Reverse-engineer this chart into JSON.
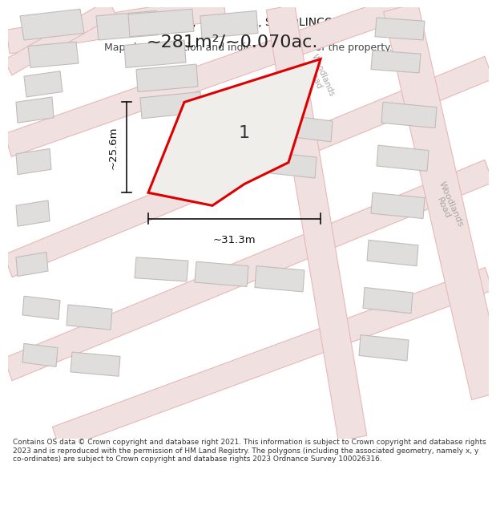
{
  "title_line1": "1, ALICE GARDENS, OVERSEAL, SWADLINCOTE, DE12 6LB",
  "title_line2": "Map shows position and indicative extent of the property.",
  "area_text": "~281m²/~0.070ac.",
  "label_1": "1",
  "dim_width": "~31.3m",
  "dim_height": "~25.6m",
  "road_label_upper": "Woodlands Road",
  "road_label_lower": "Woodlands Road",
  "footer": "Contains OS data © Crown copyright and database right 2021. This information is subject to Crown copyright and database rights 2023 and is reproduced with the permission of HM Land Registry. The polygons (including the associated geometry, namely x, y co-ordinates) are subject to Crown copyright and database rights 2023 Ordnance Survey 100026316.",
  "map_bg": "#f7f5f2",
  "road_line_color": "#e8b8b8",
  "road_fill_color": "#f0e0e0",
  "building_fill": "#e0dedd",
  "building_edge": "#c0bcba",
  "plot_fill": "#f0eeeb",
  "plot_edge": "#dd0000",
  "dim_color": "#111111",
  "text_color": "#222222",
  "road_text_color": "#aaa8a5",
  "footer_color": "#333333",
  "title_color": "#111111"
}
